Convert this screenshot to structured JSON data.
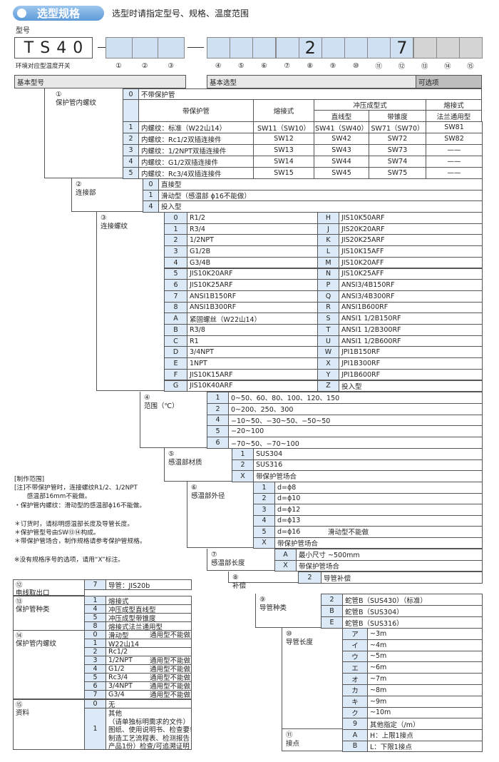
{
  "header": {
    "badge": "选型规格",
    "note": "选型时请指定型号、规格、温度范围"
  },
  "model": {
    "label": "型号",
    "base": "TS40",
    "subtitle": "环境对应型温度开关",
    "base_positions": [
      "①",
      "②",
      "③"
    ],
    "positions": [
      "④",
      "⑤",
      "⑥",
      "⑦",
      "⑧",
      "⑨",
      "⑩",
      "⑪",
      "⑫",
      "⑬",
      "⑭",
      "⑮"
    ],
    "values": [
      null,
      null,
      null,
      null,
      "2",
      null,
      null,
      null,
      "7",
      null,
      null,
      null
    ]
  },
  "bands": {
    "basic_model": "基本型号",
    "basic_selection": "基本选型",
    "options": "可选项"
  },
  "section1": {
    "num": "①",
    "label": "保护管内螺纹",
    "no_protection": [
      "0",
      "不带保护管"
    ],
    "head": {
      "with_protection": "带保护管",
      "welded": "熔接式",
      "stamped": "冲压成型式",
      "straight": "直线型",
      "tapered": "带锥度",
      "welded_flange": "熔接式",
      "flange": "法兰通用型"
    },
    "rows": [
      [
        "1",
        "内螺纹：标准（W22山14）",
        "SW11（SW10）",
        "SW41（SW40）",
        "SW71（SW70）",
        "SW81"
      ],
      [
        "2",
        "内螺纹：Rc1/2双插连接件",
        "SW12",
        "SW42",
        "SW72",
        "SW82"
      ],
      [
        "3",
        "内螺纹：1/2NPT双插连接件",
        "SW13",
        "SW43",
        "SW73",
        "——"
      ],
      [
        "4",
        "内螺纹：G1/2双插连接件",
        "SW14",
        "SW44",
        "SW74",
        "——"
      ],
      [
        "5",
        "内螺纹：Rc3/4双插连接件",
        "SW15",
        "SW45",
        "SW75",
        "——"
      ]
    ]
  },
  "sections": [
    {
      "num": "②",
      "label": "连接部",
      "rows": [
        [
          "0",
          "直接型"
        ],
        [
          "1",
          "滑动型（感温部 ϕ16不能做）"
        ],
        [
          "4",
          "投入型"
        ]
      ]
    },
    {
      "num": "③",
      "label": "连接螺纹",
      "rows": [
        [
          "0",
          "R1/2",
          "H",
          "JIS10K50ARF"
        ],
        [
          "1",
          "R3/4",
          "J",
          "JIS20K20ARF"
        ],
        [
          "2",
          "1/2NPT",
          "K",
          "JIS20K25ARF"
        ],
        [
          "3",
          "G1/2B",
          "L",
          "JIS10K15AFF"
        ],
        [
          "4",
          "G3/4B",
          "M",
          "JIS10K20AFF"
        ],
        [
          "5",
          "JIS10K20ARF",
          "N",
          "JIS10K25AFF"
        ],
        [
          "6",
          "JIS10K25ARF",
          "P",
          "ANSI3/4B150RF"
        ],
        [
          "7",
          "ANSI1B150RF",
          "Q",
          "ANSI3/4B300RF"
        ],
        [
          "8",
          "ANSI1B300RF",
          "R",
          "ANSI1B600RF"
        ],
        [
          "A",
          "紧固螺丝（W22山14）",
          "S",
          "ANSI1 1/2B150RF"
        ],
        [
          "B",
          "R3/8",
          "T",
          "ANSI1 1/2B300RF"
        ],
        [
          "C",
          "R1",
          "U",
          "ANSI1 1/2B600RF"
        ],
        [
          "D",
          "3/4NPT",
          "W",
          "JPI1B150RF"
        ],
        [
          "E",
          "1NPT",
          "X",
          "JPI1B300RF"
        ],
        [
          "F",
          "JIS10K15ARF",
          "Y",
          "JPI1B600RF"
        ],
        [
          "G",
          "JIS10K40ARF",
          "Z",
          "投入型"
        ]
      ]
    },
    {
      "num": "④",
      "label": "范围（℃）",
      "rows": [
        [
          "1",
          "0~50、60、80、100、120、150"
        ],
        [
          "2",
          "0~200、250、300"
        ],
        [
          "4",
          "−10~50、−30~50、−50~50"
        ],
        [
          "5",
          "−20~100"
        ],
        [
          "6",
          "−70~50、−70~100"
        ]
      ]
    },
    {
      "num": "⑤",
      "label": "感温部材质",
      "rows": [
        [
          "1",
          "SUS304"
        ],
        [
          "2",
          "SUS316"
        ],
        [
          "X",
          "带保护管场合"
        ]
      ]
    },
    {
      "num": "⑥",
      "label": "感温部外径",
      "rows": [
        [
          "1",
          "d=ϕ8"
        ],
        [
          "2",
          "d=ϕ10"
        ],
        [
          "3",
          "d=ϕ12"
        ],
        [
          "4",
          "d=ϕ13"
        ],
        [
          "5",
          "d=ϕ16",
          "滑动型不能做"
        ],
        [
          "X",
          "带保护管场合"
        ]
      ]
    },
    {
      "num": "⑦",
      "label": "感温部长度",
      "rows": [
        [
          "A",
          "最小尺寸 ~500mm"
        ],
        [
          "X",
          "带保护管场合"
        ]
      ]
    },
    {
      "num": "⑧",
      "label": "补偿",
      "rows": [
        [
          "2",
          "导管补偿"
        ]
      ]
    },
    {
      "num": "⑨",
      "label": "导管种类",
      "rows": [
        [
          "2",
          "蛇管B（SUS430）（标准）"
        ],
        [
          "B",
          "蛇管B（SUS304）"
        ],
        [
          "E",
          "蛇管B（SUS316）"
        ]
      ]
    },
    {
      "num": "⑩",
      "label": "导管长度",
      "rows": [
        [
          "ア",
          "~3m"
        ],
        [
          "イ",
          "~4m"
        ],
        [
          "ウ",
          "~5m"
        ],
        [
          "エ",
          "~6m"
        ],
        [
          "オ",
          "~7m"
        ],
        [
          "カ",
          "~8m"
        ],
        [
          "キ",
          "~9m"
        ],
        [
          "ク",
          "~10m"
        ],
        [
          "9",
          "其他指定（/m）"
        ]
      ]
    },
    {
      "num": "⑪",
      "label": "接点",
      "rows": [
        [
          "A",
          "H：上限1接点"
        ],
        [
          "B",
          "L：下限1接点"
        ]
      ]
    }
  ],
  "notes": [
    "[制作范围]",
    "[注]不带保护管时，连接螺纹R1/2、1/2NPT",
    "　　感温部16mm不能做。",
    "・保护管内螺纹：滑动型的感温部ϕ16不能做。",
    "＊订货时，请标明感温部长度及导管长度。",
    "＊保护管型号由SW⑬⑭构成。",
    "＊带保护管场合，制作规格请参考保护管规格。",
    "※没有规格序号的选项，请用“X”标注。"
  ],
  "left_tables": [
    {
      "num": "⑫",
      "label": "电线取出口",
      "rows": [
        [
          "7",
          "导管：JIS20b"
        ]
      ]
    },
    {
      "num": "⑬",
      "label": "保护管种类",
      "rows": [
        [
          "1",
          "熔接式"
        ],
        [
          "4",
          "冲压成型直线型"
        ],
        [
          "5",
          "冲压成型带锥度"
        ],
        [
          "8",
          "熔接式法兰通用型"
        ]
      ]
    },
    {
      "num": "⑭",
      "label": "保护管内螺纹",
      "rows": [
        [
          "0",
          "滑动型",
          "通用型不能做"
        ],
        [
          "1",
          "W22山14"
        ],
        [
          "2",
          "Rc1/2"
        ],
        [
          "3",
          "1/2NPT",
          "通用型不能做"
        ],
        [
          "4",
          "G1/2",
          "通用型不能做"
        ],
        [
          "5",
          "Rc3/4",
          "通用型不能做"
        ],
        [
          "6",
          "3/4NPT",
          "通用型不能做"
        ],
        [
          "7",
          "G3/4",
          "通用型不能做"
        ]
      ]
    },
    {
      "num": "⑮",
      "label": "资料",
      "rows": [
        [
          "0",
          "无"
        ],
        [
          "1",
          [
            "其他",
            "（请单独标明需求的文件）",
            "图纸、使用说明书、检查要领书、",
            "制造工艺流程表、检测报告（每个",
            "产品1份）检查/可追溯证明"
          ]
        ]
      ]
    }
  ]
}
